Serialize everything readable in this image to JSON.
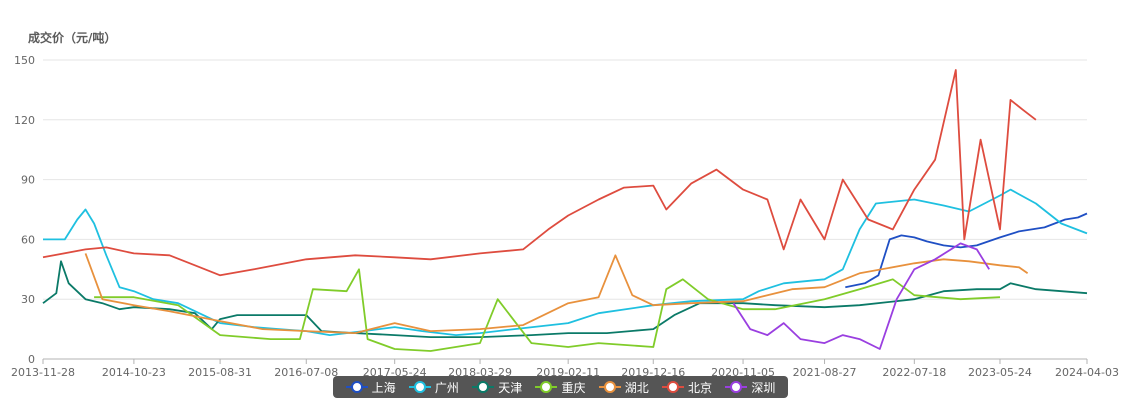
{
  "chart_data": {
    "type": "line",
    "title": "",
    "ylabel": "成交价（元/吨）",
    "xlabel": "",
    "ylim": [
      0,
      150
    ],
    "yticks": [
      0,
      30,
      60,
      90,
      120,
      150
    ],
    "xlim": [
      "2013-11-28",
      "2024-04-03"
    ],
    "xticks": [
      "2013-11-28",
      "2014-10-23",
      "2015-08-31",
      "2016-07-08",
      "2017-05-24",
      "2018-03-29",
      "2019-02-11",
      "2019-12-16",
      "2020-11-05",
      "2021-08-27",
      "2022-07-18",
      "2023-05-24",
      "2024-04-03"
    ],
    "grid": "horizontal",
    "legend_position": "bottom-center",
    "series": [
      {
        "name": "上海",
        "color": "#1f4fc4",
        "points": [
          [
            "2013-11-28",
            null
          ],
          [
            "2021-10-20",
            null
          ],
          [
            "2021-11-10",
            36
          ],
          [
            "2022-01-20",
            38
          ],
          [
            "2022-03-10",
            42
          ],
          [
            "2022-04-20",
            60
          ],
          [
            "2022-06-01",
            62
          ],
          [
            "2022-07-18",
            61
          ],
          [
            "2022-09-01",
            59
          ],
          [
            "2022-11-01",
            57
          ],
          [
            "2023-01-01",
            56
          ],
          [
            "2023-03-01",
            57
          ],
          [
            "2023-05-24",
            61
          ],
          [
            "2023-08-01",
            64
          ],
          [
            "2023-11-01",
            66
          ],
          [
            "2024-01-15",
            70
          ],
          [
            "2024-03-01",
            71
          ],
          [
            "2024-04-03",
            73
          ]
        ]
      },
      {
        "name": "广州",
        "color": "#1fc0e0",
        "points": [
          [
            "2013-11-28",
            60
          ],
          [
            "2014-02-15",
            60
          ],
          [
            "2014-04-01",
            70
          ],
          [
            "2014-05-01",
            75
          ],
          [
            "2014-06-01",
            68
          ],
          [
            "2014-07-15",
            52
          ],
          [
            "2014-09-01",
            36
          ],
          [
            "2014-10-23",
            34
          ],
          [
            "2015-01-01",
            30
          ],
          [
            "2015-04-01",
            28
          ],
          [
            "2015-08-31",
            18
          ],
          [
            "2016-01-01",
            16
          ],
          [
            "2016-04-01",
            15
          ],
          [
            "2016-07-08",
            14
          ],
          [
            "2016-10-01",
            12
          ],
          [
            "2017-02-01",
            14
          ],
          [
            "2017-05-24",
            16
          ],
          [
            "2017-09-01",
            14
          ],
          [
            "2018-01-01",
            12
          ],
          [
            "2018-03-29",
            13
          ],
          [
            "2018-08-01",
            15
          ],
          [
            "2019-02-11",
            18
          ],
          [
            "2019-06-01",
            23
          ],
          [
            "2019-12-16",
            27
          ],
          [
            "2020-05-01",
            29
          ],
          [
            "2020-11-05",
            30
          ],
          [
            "2021-01-01",
            34
          ],
          [
            "2021-04-01",
            38
          ],
          [
            "2021-08-27",
            40
          ],
          [
            "2021-11-01",
            45
          ],
          [
            "2022-01-01",
            65
          ],
          [
            "2022-03-01",
            78
          ],
          [
            "2022-07-18",
            80
          ],
          [
            "2022-11-01",
            77
          ],
          [
            "2023-02-01",
            74
          ],
          [
            "2023-05-24",
            82
          ],
          [
            "2023-07-01",
            85
          ],
          [
            "2023-10-01",
            78
          ],
          [
            "2024-01-01",
            68
          ],
          [
            "2024-04-03",
            63
          ]
        ]
      },
      {
        "name": "天津",
        "color": "#0b7a68",
        "points": [
          [
            "2013-11-28",
            28
          ],
          [
            "2014-01-15",
            33
          ],
          [
            "2014-02-01",
            49
          ],
          [
            "2014-03-01",
            38
          ],
          [
            "2014-05-01",
            30
          ],
          [
            "2014-07-01",
            28
          ],
          [
            "2014-09-01",
            25
          ],
          [
            "2014-10-23",
            26
          ],
          [
            "2015-03-01",
            25
          ],
          [
            "2015-06-01",
            23
          ],
          [
            "2015-08-01",
            15
          ],
          [
            "2015-08-31",
            20
          ],
          [
            "2015-11-01",
            22
          ],
          [
            "2016-03-01",
            22
          ],
          [
            "2016-07-08",
            22
          ],
          [
            "2016-09-01",
            14
          ],
          [
            "2017-01-01",
            13
          ],
          [
            "2017-05-24",
            12
          ],
          [
            "2017-10-01",
            11
          ],
          [
            "2018-03-29",
            11
          ],
          [
            "2018-10-01",
            12
          ],
          [
            "2019-02-11",
            13
          ],
          [
            "2019-07-01",
            13
          ],
          [
            "2019-12-16",
            15
          ],
          [
            "2020-03-01",
            22
          ],
          [
            "2020-06-01",
            28
          ],
          [
            "2020-11-05",
            28
          ],
          [
            "2021-03-01",
            27
          ],
          [
            "2021-08-27",
            26
          ],
          [
            "2022-01-01",
            27
          ],
          [
            "2022-07-18",
            30
          ],
          [
            "2022-11-01",
            34
          ],
          [
            "2023-03-01",
            35
          ],
          [
            "2023-05-24",
            35
          ],
          [
            "2023-07-01",
            38
          ],
          [
            "2023-10-01",
            35
          ],
          [
            "2024-04-03",
            33
          ]
        ]
      },
      {
        "name": "重庆",
        "color": "#80cc2a",
        "points": [
          [
            "2013-11-28",
            null
          ],
          [
            "2014-05-15",
            null
          ],
          [
            "2014-06-01",
            31
          ],
          [
            "2014-10-23",
            31
          ],
          [
            "2015-04-01",
            27
          ],
          [
            "2015-08-31",
            12
          ],
          [
            "2016-03-01",
            10
          ],
          [
            "2016-06-15",
            10
          ],
          [
            "2016-08-01",
            35
          ],
          [
            "2016-12-01",
            34
          ],
          [
            "2017-01-15",
            45
          ],
          [
            "2017-02-15",
            10
          ],
          [
            "2017-05-24",
            5
          ],
          [
            "2017-10-01",
            4
          ],
          [
            "2018-03-29",
            8
          ],
          [
            "2018-06-01",
            30
          ],
          [
            "2018-10-01",
            8
          ],
          [
            "2019-02-11",
            6
          ],
          [
            "2019-06-01",
            8
          ],
          [
            "2019-12-16",
            6
          ],
          [
            "2020-02-01",
            35
          ],
          [
            "2020-04-01",
            40
          ],
          [
            "2020-07-01",
            30
          ],
          [
            "2020-11-05",
            25
          ],
          [
            "2021-03-01",
            25
          ],
          [
            "2021-08-27",
            30
          ],
          [
            "2022-01-01",
            35
          ],
          [
            "2022-05-01",
            40
          ],
          [
            "2022-07-18",
            32
          ],
          [
            "2023-01-01",
            30
          ],
          [
            "2023-05-24",
            31
          ]
        ]
      },
      {
        "name": "湖北",
        "color": "#e8913d",
        "points": [
          [
            "2013-11-28",
            null
          ],
          [
            "2014-04-01",
            null
          ],
          [
            "2014-05-01",
            53
          ],
          [
            "2014-07-01",
            30
          ],
          [
            "2014-10-23",
            27
          ],
          [
            "2015-03-01",
            24
          ],
          [
            "2015-08-31",
            19
          ],
          [
            "2016-02-01",
            15
          ],
          [
            "2016-07-08",
            14
          ],
          [
            "2017-01-01",
            13
          ],
          [
            "2017-05-24",
            18
          ],
          [
            "2017-10-01",
            14
          ],
          [
            "2018-03-29",
            15
          ],
          [
            "2018-09-01",
            17
          ],
          [
            "2019-02-11",
            28
          ],
          [
            "2019-06-01",
            31
          ],
          [
            "2019-08-01",
            52
          ],
          [
            "2019-10-01",
            32
          ],
          [
            "2019-12-16",
            27
          ],
          [
            "2020-05-01",
            28
          ],
          [
            "2020-11-05",
            29
          ],
          [
            "2021-02-01",
            32
          ],
          [
            "2021-05-01",
            35
          ],
          [
            "2021-08-27",
            36
          ],
          [
            "2022-01-01",
            43
          ],
          [
            "2022-07-18",
            48
          ],
          [
            "2022-11-01",
            50
          ],
          [
            "2023-02-01",
            49
          ],
          [
            "2023-05-24",
            47
          ],
          [
            "2023-08-01",
            46
          ],
          [
            "2023-09-01",
            43
          ]
        ]
      },
      {
        "name": "北京",
        "color": "#de4c3f",
        "points": [
          [
            "2013-11-28",
            51
          ],
          [
            "2014-05-01",
            55
          ],
          [
            "2014-07-15",
            56
          ],
          [
            "2014-10-23",
            53
          ],
          [
            "2015-03-01",
            52
          ],
          [
            "2015-06-01",
            47
          ],
          [
            "2015-08-31",
            42
          ],
          [
            "2016-01-01",
            45
          ],
          [
            "2016-07-08",
            50
          ],
          [
            "2017-01-01",
            52
          ],
          [
            "2017-05-24",
            51
          ],
          [
            "2017-10-01",
            50
          ],
          [
            "2018-03-29",
            53
          ],
          [
            "2018-09-01",
            55
          ],
          [
            "2018-12-01",
            65
          ],
          [
            "2019-02-11",
            72
          ],
          [
            "2019-06-01",
            80
          ],
          [
            "2019-09-01",
            86
          ],
          [
            "2019-12-16",
            87
          ],
          [
            "2020-02-01",
            75
          ],
          [
            "2020-05-01",
            88
          ],
          [
            "2020-08-01",
            95
          ],
          [
            "2020-11-05",
            85
          ],
          [
            "2021-02-01",
            80
          ],
          [
            "2021-04-01",
            55
          ],
          [
            "2021-06-01",
            80
          ],
          [
            "2021-08-27",
            60
          ],
          [
            "2021-11-01",
            90
          ],
          [
            "2022-02-01",
            70
          ],
          [
            "2022-05-01",
            65
          ],
          [
            "2022-07-18",
            85
          ],
          [
            "2022-10-01",
            100
          ],
          [
            "2022-12-15",
            145
          ],
          [
            "2023-01-15",
            60
          ],
          [
            "2023-03-15",
            110
          ],
          [
            "2023-05-24",
            65
          ],
          [
            "2023-07-01",
            130
          ],
          [
            "2023-08-15",
            125
          ],
          [
            "2023-10-01",
            120
          ]
        ]
      },
      {
        "name": "深圳",
        "color": "#9a3fe0",
        "points": [
          [
            "2013-11-28",
            null
          ],
          [
            "2020-09-15",
            null
          ],
          [
            "2020-10-01",
            28
          ],
          [
            "2020-12-01",
            15
          ],
          [
            "2021-02-01",
            12
          ],
          [
            "2021-04-01",
            18
          ],
          [
            "2021-06-01",
            10
          ],
          [
            "2021-08-27",
            8
          ],
          [
            "2021-11-01",
            12
          ],
          [
            "2022-01-01",
            10
          ],
          [
            "2022-03-15",
            5
          ],
          [
            "2022-05-15",
            30
          ],
          [
            "2022-07-18",
            45
          ],
          [
            "2022-10-01",
            50
          ],
          [
            "2023-01-01",
            58
          ],
          [
            "2023-03-01",
            55
          ],
          [
            "2023-04-15",
            45
          ]
        ]
      }
    ]
  }
}
